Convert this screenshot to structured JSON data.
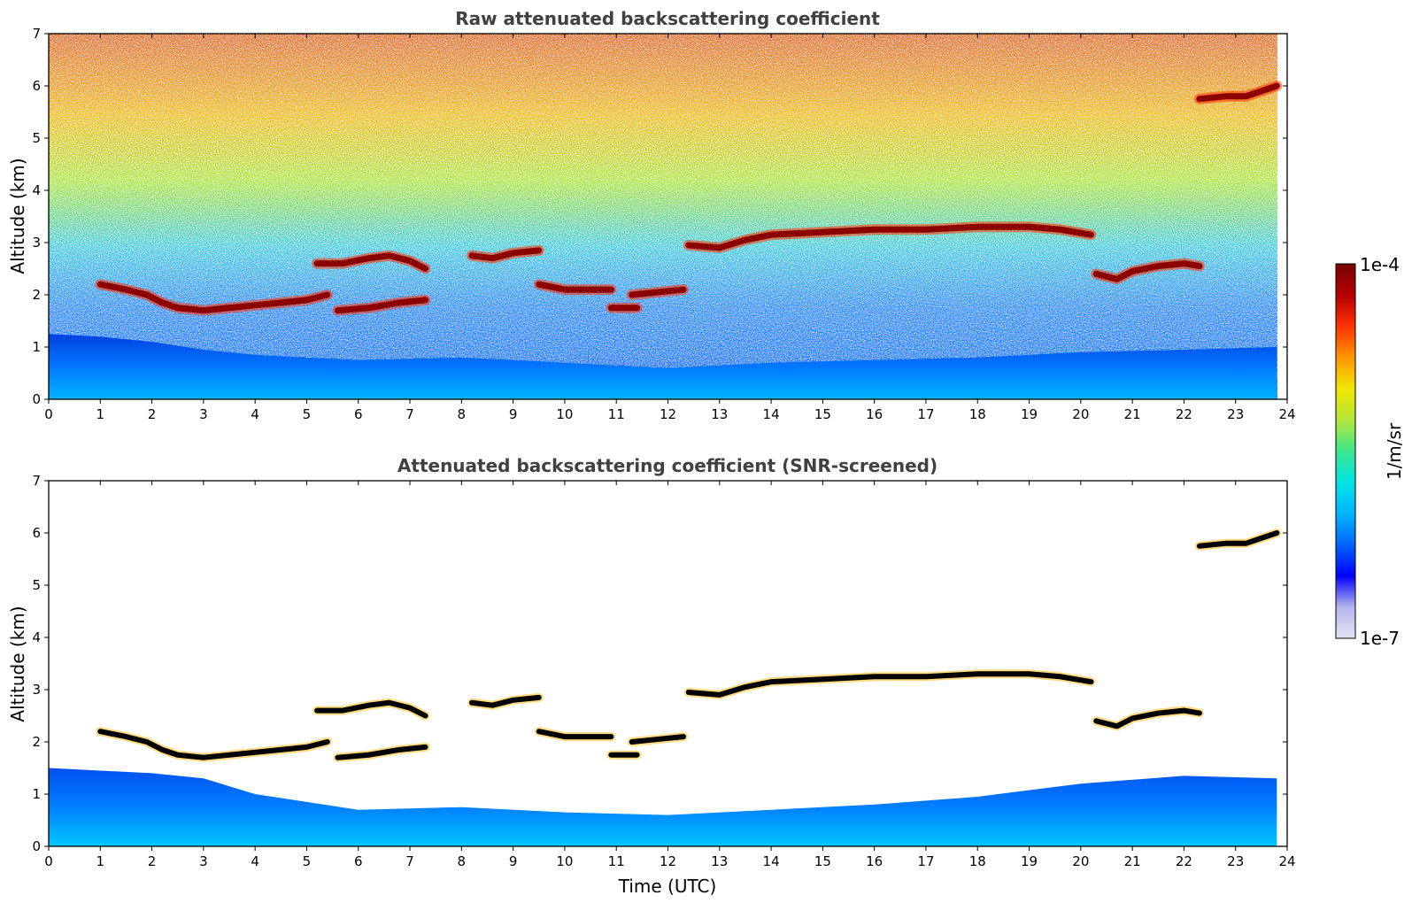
{
  "colors": {
    "colormap": [
      "#e4e4f4",
      "#b4b4ec",
      "#0000ff",
      "#0066ff",
      "#00b4ff",
      "#00e4e4",
      "#3ce68c",
      "#b4e63c",
      "#f0e600",
      "#ff9600",
      "#ff3200",
      "#b40000",
      "#780000"
    ],
    "layer_screened_top": "#000000"
  },
  "chart_data": [
    {
      "type": "heatmap",
      "title": "Raw attenuated backscattering coefficient",
      "xlabel": "",
      "ylabel": "Altitude (km)",
      "xlim": [
        0,
        24
      ],
      "ylim": [
        0,
        7
      ],
      "xticks": [
        "0",
        "1",
        "2",
        "3",
        "4",
        "5",
        "6",
        "7",
        "8",
        "9",
        "10",
        "11",
        "12",
        "13",
        "14",
        "15",
        "16",
        "17",
        "18",
        "19",
        "20",
        "21",
        "22",
        "23",
        "24"
      ],
      "yticks": [
        "0",
        "1",
        "2",
        "3",
        "4",
        "5",
        "6",
        "7"
      ],
      "data_end_hour": 23.8,
      "cloud_layers": [
        {
          "points": [
            [
              1.0,
              2.2
            ],
            [
              1.5,
              2.1
            ],
            [
              1.9,
              2.0
            ],
            [
              2.2,
              1.85
            ],
            [
              2.5,
              1.75
            ],
            [
              3.0,
              1.7
            ],
            [
              3.5,
              1.75
            ],
            [
              4.0,
              1.8
            ],
            [
              4.5,
              1.85
            ],
            [
              5.0,
              1.9
            ],
            [
              5.4,
              2.0
            ]
          ]
        },
        {
          "points": [
            [
              5.2,
              2.6
            ],
            [
              5.7,
              2.6
            ],
            [
              6.2,
              2.7
            ],
            [
              6.6,
              2.75
            ],
            [
              7.0,
              2.65
            ],
            [
              7.3,
              2.5
            ]
          ]
        },
        {
          "points": [
            [
              5.6,
              1.7
            ],
            [
              6.2,
              1.75
            ],
            [
              6.8,
              1.85
            ],
            [
              7.3,
              1.9
            ]
          ]
        },
        {
          "points": [
            [
              8.2,
              2.75
            ],
            [
              8.6,
              2.7
            ],
            [
              9.0,
              2.8
            ],
            [
              9.5,
              2.85
            ]
          ]
        },
        {
          "points": [
            [
              9.5,
              2.2
            ],
            [
              10.0,
              2.1
            ],
            [
              10.5,
              2.1
            ],
            [
              10.9,
              2.1
            ]
          ]
        },
        {
          "points": [
            [
              10.9,
              1.75
            ],
            [
              11.4,
              1.75
            ]
          ]
        },
        {
          "points": [
            [
              11.3,
              2.0
            ],
            [
              11.8,
              2.05
            ],
            [
              12.3,
              2.1
            ]
          ]
        },
        {
          "points": [
            [
              12.4,
              2.95
            ],
            [
              13.0,
              2.9
            ],
            [
              13.5,
              3.05
            ],
            [
              14.0,
              3.15
            ],
            [
              15.0,
              3.2
            ],
            [
              16.0,
              3.25
            ],
            [
              17.0,
              3.25
            ],
            [
              18.0,
              3.3
            ],
            [
              19.0,
              3.3
            ],
            [
              19.6,
              3.25
            ],
            [
              20.2,
              3.15
            ]
          ]
        },
        {
          "points": [
            [
              20.3,
              2.4
            ],
            [
              20.7,
              2.3
            ],
            [
              21.0,
              2.45
            ],
            [
              21.5,
              2.55
            ],
            [
              22.0,
              2.6
            ],
            [
              22.3,
              2.55
            ]
          ]
        },
        {
          "points": [
            [
              22.3,
              5.75
            ],
            [
              22.8,
              5.8
            ],
            [
              23.2,
              5.8
            ],
            [
              23.5,
              5.9
            ],
            [
              23.8,
              6.0
            ]
          ]
        }
      ],
      "boundary_layer_top": [
        [
          0,
          1.25
        ],
        [
          1.0,
          1.2
        ],
        [
          2.0,
          1.1
        ],
        [
          3.0,
          0.95
        ],
        [
          4.0,
          0.85
        ],
        [
          6.0,
          0.75
        ],
        [
          8.0,
          0.8
        ],
        [
          10.0,
          0.7
        ],
        [
          12.0,
          0.6
        ],
        [
          14.0,
          0.7
        ],
        [
          16.0,
          0.75
        ],
        [
          18.0,
          0.8
        ],
        [
          20.0,
          0.9
        ],
        [
          22.0,
          0.95
        ],
        [
          23.8,
          1.0
        ]
      ],
      "colorbar": {
        "min_label": "1e-7",
        "max_label": "1e-4",
        "label": "1/m/sr"
      }
    },
    {
      "type": "heatmap",
      "title": "Attenuated backscattering coefficient (SNR-screened)",
      "xlabel": "Time (UTC)",
      "ylabel": "Altitude (km)",
      "xlim": [
        0,
        24
      ],
      "ylim": [
        0,
        7
      ],
      "xticks": [
        "0",
        "1",
        "2",
        "3",
        "4",
        "5",
        "6",
        "7",
        "8",
        "9",
        "10",
        "11",
        "12",
        "13",
        "14",
        "15",
        "16",
        "17",
        "18",
        "19",
        "20",
        "21",
        "22",
        "23",
        "24"
      ],
      "yticks": [
        "0",
        "1",
        "2",
        "3",
        "4",
        "5",
        "6",
        "7"
      ],
      "data_end_hour": 23.8,
      "boundary_layer_top": [
        [
          0,
          1.5
        ],
        [
          1.0,
          1.45
        ],
        [
          2.0,
          1.4
        ],
        [
          3.0,
          1.3
        ],
        [
          4.0,
          1.0
        ],
        [
          6.0,
          0.7
        ],
        [
          8.0,
          0.75
        ],
        [
          10.0,
          0.65
        ],
        [
          12.0,
          0.6
        ],
        [
          14.0,
          0.7
        ],
        [
          16.0,
          0.8
        ],
        [
          18.0,
          0.95
        ],
        [
          20.0,
          1.2
        ],
        [
          22.0,
          1.35
        ],
        [
          23.8,
          1.3
        ]
      ]
    }
  ]
}
